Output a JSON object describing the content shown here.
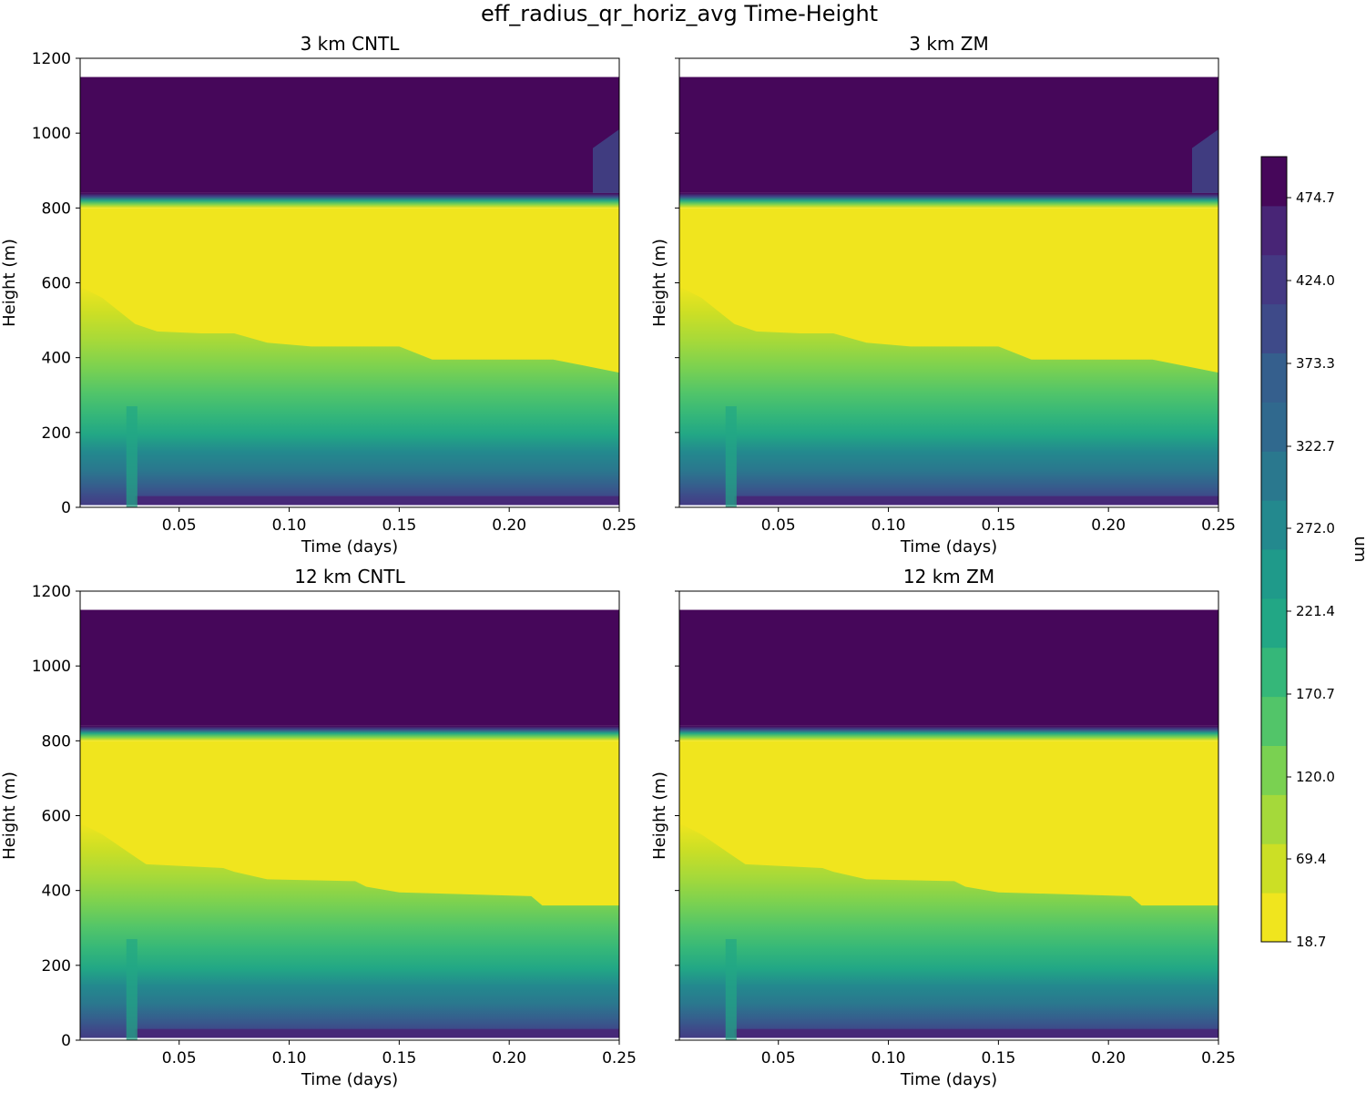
{
  "figure": {
    "title": "eff_radius_qr_horiz_avg Time-Height"
  },
  "chart_data": [
    {
      "type": "heatmap",
      "title": "3 km CNTL",
      "xlabel": "Time (days)",
      "ylabel": "Height (m)",
      "xlim": [
        0.005,
        0.25
      ],
      "ylim": [
        0,
        1200
      ],
      "x_ticks": [
        "0.05",
        "0.10",
        "0.15",
        "0.20",
        "0.25"
      ],
      "y_ticks": [
        "0",
        "200",
        "400",
        "600",
        "800",
        "1000",
        "1200"
      ],
      "regions": [
        {
          "band": "no-data",
          "height_range": [
            1150,
            1200
          ]
        },
        {
          "band": "max (~500 um)",
          "height_range": [
            840,
            1150
          ]
        },
        {
          "band": "transition",
          "height_range": [
            800,
            840
          ]
        },
        {
          "band": "min (~18.7 um)",
          "height_range": [
            400,
            800
          ]
        }
      ],
      "gradient_top_height": {
        "time": [
          0.005,
          0.015,
          0.03,
          0.04,
          0.06,
          0.075,
          0.09,
          0.11,
          0.15,
          0.165,
          0.22,
          0.25
        ],
        "height": [
          590,
          560,
          490,
          470,
          465,
          465,
          440,
          430,
          430,
          395,
          395,
          360
        ]
      },
      "notes": "upper right corner shows slightly lower values near 0.24-0.25 days, 850-1000 m"
    },
    {
      "type": "heatmap",
      "title": "3 km ZM",
      "xlabel": "Time (days)",
      "ylabel": "Height (m)",
      "xlim": [
        0.005,
        0.25
      ],
      "ylim": [
        0,
        1200
      ],
      "x_ticks": [
        "0.05",
        "0.10",
        "0.15",
        "0.20",
        "0.25"
      ],
      "y_ticks": [
        "0",
        "200",
        "400",
        "600",
        "800",
        "1000",
        "1200"
      ],
      "gradient_top_height": {
        "time": [
          0.005,
          0.015,
          0.03,
          0.04,
          0.06,
          0.075,
          0.09,
          0.11,
          0.15,
          0.165,
          0.22,
          0.25
        ],
        "height": [
          590,
          560,
          490,
          470,
          465,
          465,
          440,
          430,
          430,
          395,
          395,
          360
        ]
      }
    },
    {
      "type": "heatmap",
      "title": "12 km CNTL",
      "xlabel": "Time (days)",
      "ylabel": "Height (m)",
      "xlim": [
        0.005,
        0.25
      ],
      "ylim": [
        0,
        1200
      ],
      "x_ticks": [
        "0.05",
        "0.10",
        "0.15",
        "0.20",
        "0.25"
      ],
      "y_ticks": [
        "0",
        "200",
        "400",
        "600",
        "800",
        "1000",
        "1200"
      ],
      "gradient_top_height": {
        "time": [
          0.005,
          0.015,
          0.03,
          0.035,
          0.07,
          0.075,
          0.09,
          0.13,
          0.135,
          0.15,
          0.21,
          0.215,
          0.25
        ],
        "height": [
          580,
          550,
          490,
          470,
          460,
          450,
          430,
          425,
          410,
          395,
          385,
          360,
          360
        ]
      }
    },
    {
      "type": "heatmap",
      "title": "12 km ZM",
      "xlabel": "Time (days)",
      "ylabel": "Height (m)",
      "xlim": [
        0.005,
        0.25
      ],
      "ylim": [
        0,
        1200
      ],
      "x_ticks": [
        "0.05",
        "0.10",
        "0.15",
        "0.20",
        "0.25"
      ],
      "y_ticks": [
        "0",
        "200",
        "400",
        "600",
        "800",
        "1000",
        "1200"
      ],
      "gradient_top_height": {
        "time": [
          0.005,
          0.015,
          0.03,
          0.035,
          0.07,
          0.075,
          0.09,
          0.13,
          0.135,
          0.15,
          0.21,
          0.215,
          0.25
        ],
        "height": [
          580,
          550,
          490,
          470,
          460,
          450,
          430,
          425,
          410,
          395,
          385,
          360,
          360
        ]
      }
    }
  ],
  "colorbar": {
    "label": "um",
    "ticks": [
      "18.7",
      "69.4",
      "120.0",
      "170.7",
      "221.4",
      "272.0",
      "322.7",
      "373.3",
      "424.0",
      "474.7"
    ],
    "colors": [
      "#f0e51e",
      "#ccdf25",
      "#a5d93a",
      "#7ad151",
      "#52c569",
      "#35b779",
      "#22a785",
      "#1f9a8a",
      "#23898e",
      "#2a788e",
      "#30698e",
      "#355f8d",
      "#3e4a89",
      "#443983",
      "#482576",
      "#46075a"
    ]
  }
}
